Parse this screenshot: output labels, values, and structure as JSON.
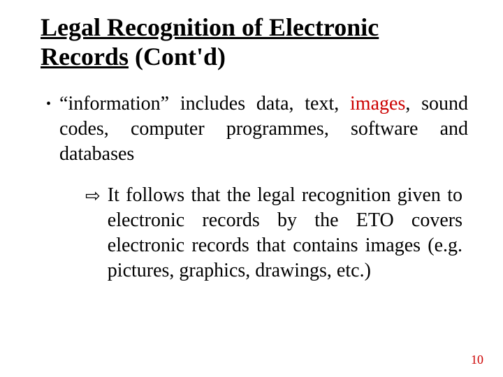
{
  "title": {
    "underlined": "Legal Recognition of Electronic Records",
    "rest": " (Cont'd)"
  },
  "bullet": {
    "marker": "•",
    "pre": "“information” includes data, text, ",
    "highlight": "images",
    "post": ", sound codes, computer programmes, software and databases"
  },
  "sub": {
    "marker": "⇨",
    "text": "It follows that the legal recognition given to electronic records by the ETO covers electronic records that contains images (e.g. pictures, graphics, drawings, etc.)"
  },
  "colors": {
    "highlight": "#cc0000",
    "text": "#000000",
    "pagenum": "#cc0000",
    "background": "#ffffff"
  },
  "page_number": "10"
}
